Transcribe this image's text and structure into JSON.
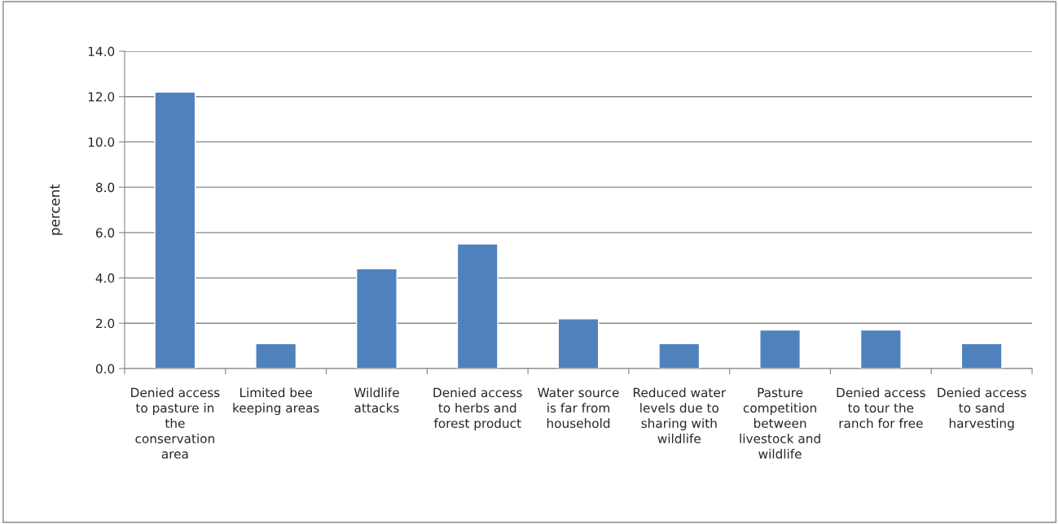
{
  "chart_data": {
    "type": "bar",
    "ylabel": "percent",
    "categories": [
      "Denied access to pasture in the conservation area",
      "Limited bee keeping areas",
      "Wildlife attacks",
      "Denied access to herbs and forest product",
      "Water source is far from household",
      "Reduced water levels due to sharing with wildlife",
      "Pasture competition between livestock and wildlife",
      "Denied access to tour the ranch for free",
      "Denied access to sand harvesting"
    ],
    "values": [
      12.2,
      1.1,
      4.4,
      5.5,
      2.2,
      1.1,
      1.7,
      1.7,
      1.1
    ],
    "color": "#4f81bd",
    "ylim": [
      0,
      14
    ],
    "yticks": [
      {
        "value": 0,
        "label": "0.0"
      },
      {
        "value": 2,
        "label": "2.0"
      },
      {
        "value": 4,
        "label": "4.0"
      },
      {
        "value": 6,
        "label": "6.0"
      },
      {
        "value": 8,
        "label": "8.0"
      },
      {
        "value": 10,
        "label": "10.0"
      },
      {
        "value": 12,
        "label": "12.0"
      },
      {
        "value": 14,
        "label": "14.0"
      }
    ],
    "grid": "y"
  }
}
